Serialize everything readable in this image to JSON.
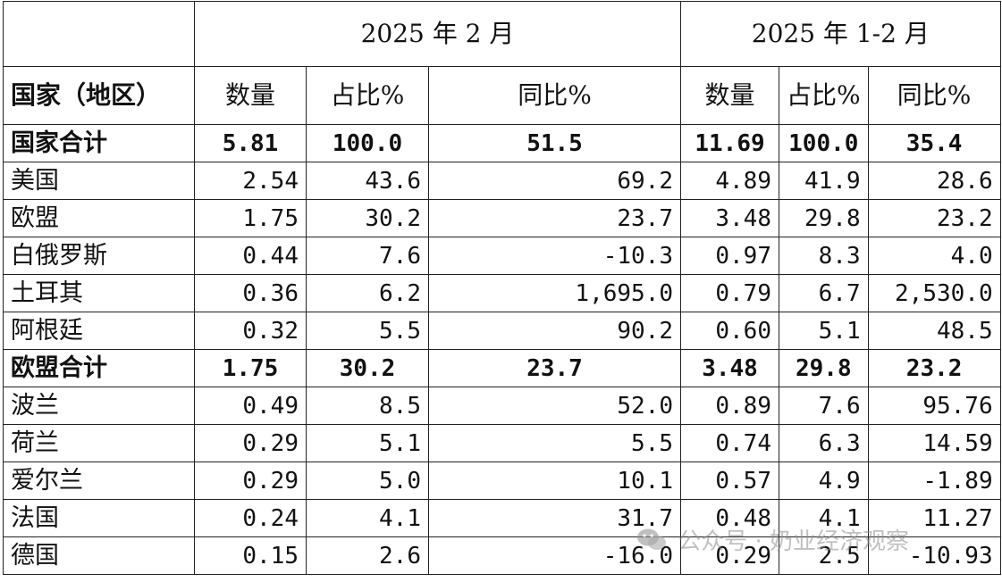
{
  "header": {
    "period1": "2025 年 2 月",
    "period2": "2025 年 1-2 月",
    "col_country": "国家（地区）",
    "col_qty": "数量",
    "col_share": "占比%",
    "col_yoy": "同比%"
  },
  "rows": [
    {
      "name": "国家合计",
      "bold": true,
      "v": [
        "5.81",
        "100.0",
        "51.5",
        "11.69",
        "100.0",
        "35.4"
      ]
    },
    {
      "name": "美国",
      "bold": false,
      "v": [
        "2.54",
        "43.6",
        "69.2",
        "4.89",
        "41.9",
        "28.6"
      ]
    },
    {
      "name": "欧盟",
      "bold": false,
      "v": [
        "1.75",
        "30.2",
        "23.7",
        "3.48",
        "29.8",
        "23.2"
      ]
    },
    {
      "name": "白俄罗斯",
      "bold": false,
      "v": [
        "0.44",
        "7.6",
        "-10.3",
        "0.97",
        "8.3",
        "4.0"
      ]
    },
    {
      "name": "土耳其",
      "bold": false,
      "v": [
        "0.36",
        "6.2",
        "1,695.0",
        "0.79",
        "6.7",
        "2,530.0"
      ]
    },
    {
      "name": "阿根廷",
      "bold": false,
      "v": [
        "0.32",
        "5.5",
        "90.2",
        "0.60",
        "5.1",
        "48.5"
      ]
    },
    {
      "name": "欧盟合计",
      "bold": true,
      "v": [
        "1.75",
        "30.2",
        "23.7",
        "3.48",
        "29.8",
        "23.2"
      ]
    },
    {
      "name": "波兰",
      "bold": false,
      "v": [
        "0.49",
        "8.5",
        "52.0",
        "0.89",
        "7.6",
        "95.76"
      ]
    },
    {
      "name": "荷兰",
      "bold": false,
      "v": [
        "0.29",
        "5.1",
        "5.5",
        "0.74",
        "6.3",
        "14.59"
      ]
    },
    {
      "name": "爱尔兰",
      "bold": false,
      "v": [
        "0.29",
        "5.0",
        "10.1",
        "0.57",
        "4.9",
        "-1.89"
      ]
    },
    {
      "name": "法国",
      "bold": false,
      "v": [
        "0.24",
        "4.1",
        "31.7",
        "0.48",
        "4.1",
        "11.27"
      ]
    },
    {
      "name": "德国",
      "bold": false,
      "v": [
        "0.15",
        "2.6",
        "-16.0",
        "0.29",
        "2.5",
        "-10.93"
      ]
    }
  ],
  "watermark": {
    "icon": "wechat-icon",
    "text": "公众号 · 奶业经济观察"
  }
}
